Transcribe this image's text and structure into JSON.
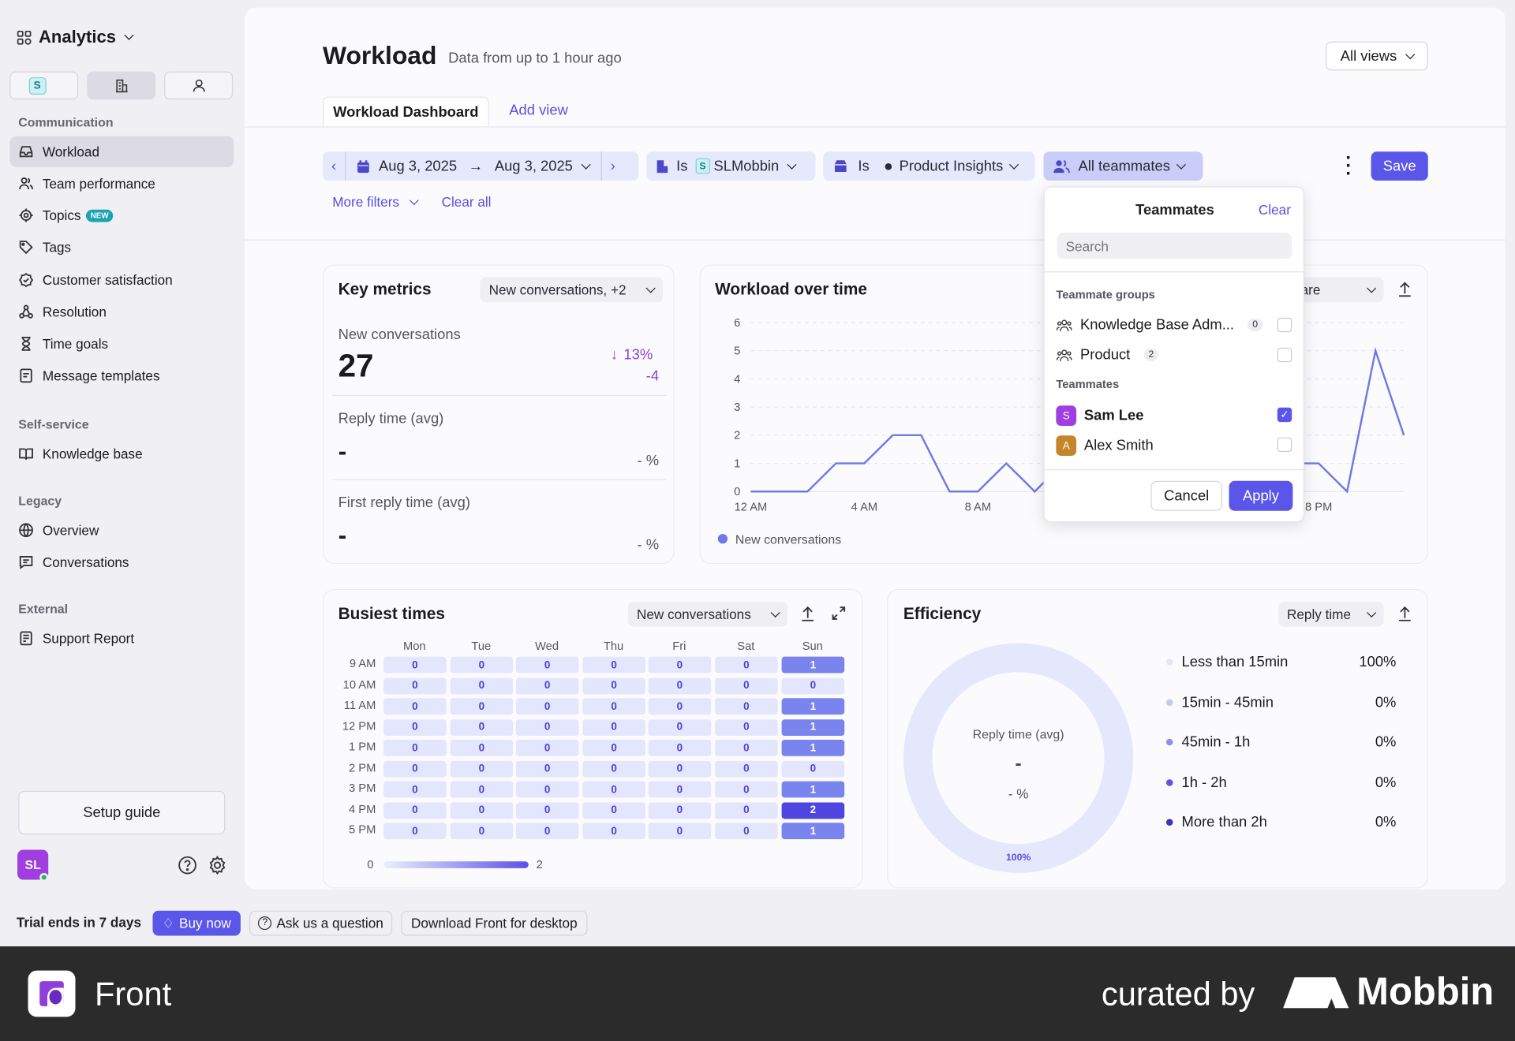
{
  "sidebar": {
    "app_title": "Analytics",
    "workspace_initial": "S",
    "sections": [
      {
        "label": "Communication",
        "items": [
          "Workload",
          "Team performance",
          "Topics",
          "Tags",
          "Customer satisfaction",
          "Resolution",
          "Time goals",
          "Message templates"
        ]
      },
      {
        "label": "Self-service",
        "items": [
          "Knowledge base"
        ]
      },
      {
        "label": "Legacy",
        "items": [
          "Overview",
          "Conversations"
        ]
      },
      {
        "label": "External",
        "items": [
          "Support Report"
        ]
      }
    ],
    "topics_badge": "NEW",
    "setup_guide": "Setup guide",
    "avatar_initials": "SL"
  },
  "header": {
    "title": "Workload",
    "subtitle": "Data from up to 1 hour ago",
    "views_dropdown": "All views",
    "tabs": [
      "Workload Dashboard",
      "Add view"
    ],
    "save": "Save"
  },
  "filters": {
    "date_start": "Aug 3, 2025",
    "date_end": "Aug 3, 2025",
    "workspace_op": "Is",
    "workspace_initial": "S",
    "workspace": "SLMobbin",
    "inbox_op": "Is",
    "inbox": "Product Insights",
    "teammates": "All teammates",
    "more_filters": "More filters",
    "clear_all": "Clear all"
  },
  "teammates_popup": {
    "title": "Teammates",
    "clear": "Clear",
    "search_placeholder": "Search",
    "groups_label": "Teammate groups",
    "groups": [
      {
        "name": "Knowledge Base Adm...",
        "count": "0",
        "checked": false
      },
      {
        "name": "Product",
        "count": "2",
        "checked": false
      }
    ],
    "teammates_label": "Teammates",
    "teammates": [
      {
        "initial": "S",
        "name": "Sam Lee",
        "checked": true,
        "color": "#a03ee0"
      },
      {
        "initial": "A",
        "name": "Alex Smith",
        "checked": false,
        "color": "#c4862a"
      }
    ],
    "cancel": "Cancel",
    "apply": "Apply"
  },
  "key_metrics": {
    "title": "Key metrics",
    "dropdown": "New conversations, +2",
    "metrics": [
      {
        "label": "New conversations",
        "value": "27",
        "change_pct": "13%",
        "change_abs": "-4"
      },
      {
        "label": "Reply time (avg)",
        "value": "-",
        "change_pct": "- %"
      },
      {
        "label": "First reply time (avg)",
        "value": "-",
        "change_pct": "- %"
      }
    ]
  },
  "workload_chart": {
    "title": "Workload over time",
    "compare_dropdown": "Compare"
  },
  "chart_data": [
    {
      "type": "line",
      "title": "Workload over time",
      "x_ticks": [
        "12 AM",
        "4 AM",
        "8 AM",
        "12 PM",
        "4 PM",
        "8 PM"
      ],
      "y_ticks": [
        "0",
        "1",
        "2",
        "3",
        "4",
        "5",
        "6"
      ],
      "ylim": [
        0,
        6
      ],
      "x_hours": [
        0,
        1,
        2,
        3,
        4,
        5,
        6,
        7,
        8,
        9,
        10,
        11,
        12,
        13,
        14,
        15,
        16,
        17,
        18,
        19,
        20,
        21,
        22,
        23
      ],
      "series": [
        {
          "name": "New conversations",
          "color": "#6e78e8",
          "values": [
            0,
            0,
            0,
            1,
            1,
            2,
            2,
            0,
            0,
            1,
            0,
            1,
            2,
            1,
            2,
            1,
            2,
            1,
            1,
            1,
            1,
            0,
            5,
            2
          ]
        }
      ],
      "legend": "bottom-left"
    },
    {
      "type": "heatmap",
      "title": "Busiest times",
      "dropdown": "New conversations",
      "columns": [
        "Mon",
        "Tue",
        "Wed",
        "Thu",
        "Fri",
        "Sat",
        "Sun"
      ],
      "rows": [
        "9 AM",
        "10 AM",
        "11 AM",
        "12 PM",
        "1 PM",
        "2 PM",
        "3 PM",
        "4 PM",
        "5 PM"
      ],
      "values": [
        [
          0,
          0,
          0,
          0,
          0,
          0,
          1
        ],
        [
          0,
          0,
          0,
          0,
          0,
          0,
          0
        ],
        [
          0,
          0,
          0,
          0,
          0,
          0,
          1
        ],
        [
          0,
          0,
          0,
          0,
          0,
          0,
          1
        ],
        [
          0,
          0,
          0,
          0,
          0,
          0,
          1
        ],
        [
          0,
          0,
          0,
          0,
          0,
          0,
          0
        ],
        [
          0,
          0,
          0,
          0,
          0,
          0,
          1
        ],
        [
          0,
          0,
          0,
          0,
          0,
          0,
          2
        ],
        [
          0,
          0,
          0,
          0,
          0,
          0,
          1
        ]
      ],
      "scale_min": "0",
      "scale_max": "2"
    },
    {
      "type": "pie",
      "title": "Efficiency",
      "dropdown": "Reply time",
      "center_label": "Reply time (avg)",
      "center_value": "-",
      "center_pct": "- %",
      "ring_label": "100%",
      "categories": [
        "Less than 15min",
        "15min - 45min",
        "45min - 1h",
        "1h - 2h",
        "More than 2h"
      ],
      "values": [
        "100%",
        "0%",
        "0%",
        "0%",
        "0%"
      ],
      "colors": [
        "#e3e5fc",
        "#c4c9f8",
        "#8b90f0",
        "#5c55e6",
        "#3b35b8"
      ]
    }
  ],
  "bottom_bar": {
    "trial": "Trial ends in 7 days",
    "buy_now": "Buy now",
    "ask": "Ask us a question",
    "download": "Download Front for desktop"
  },
  "footer": {
    "brand": "Front",
    "curated_by": "curated by",
    "mobbin": "Mobbin"
  },
  "colors": {
    "accent": "#5a56e9",
    "filter_bg": "#e6e8fb"
  }
}
